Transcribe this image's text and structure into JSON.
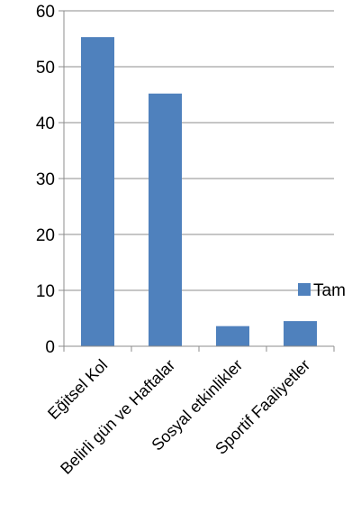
{
  "chart_data": {
    "type": "bar",
    "categories": [
      "Eğitsel Kol",
      "Belirli gün ve Haftalar",
      "Sosyal etkinlikler",
      "Sportif Faaliyetler"
    ],
    "series": [
      {
        "name": "Tam",
        "values": [
          55.3,
          45.2,
          3.6,
          4.5
        ],
        "color": "#4F81BD"
      }
    ],
    "ylim": [
      0,
      60
    ],
    "yticks": [
      0,
      10,
      20,
      30,
      40,
      50,
      60
    ],
    "grid": true,
    "legend": "right"
  }
}
